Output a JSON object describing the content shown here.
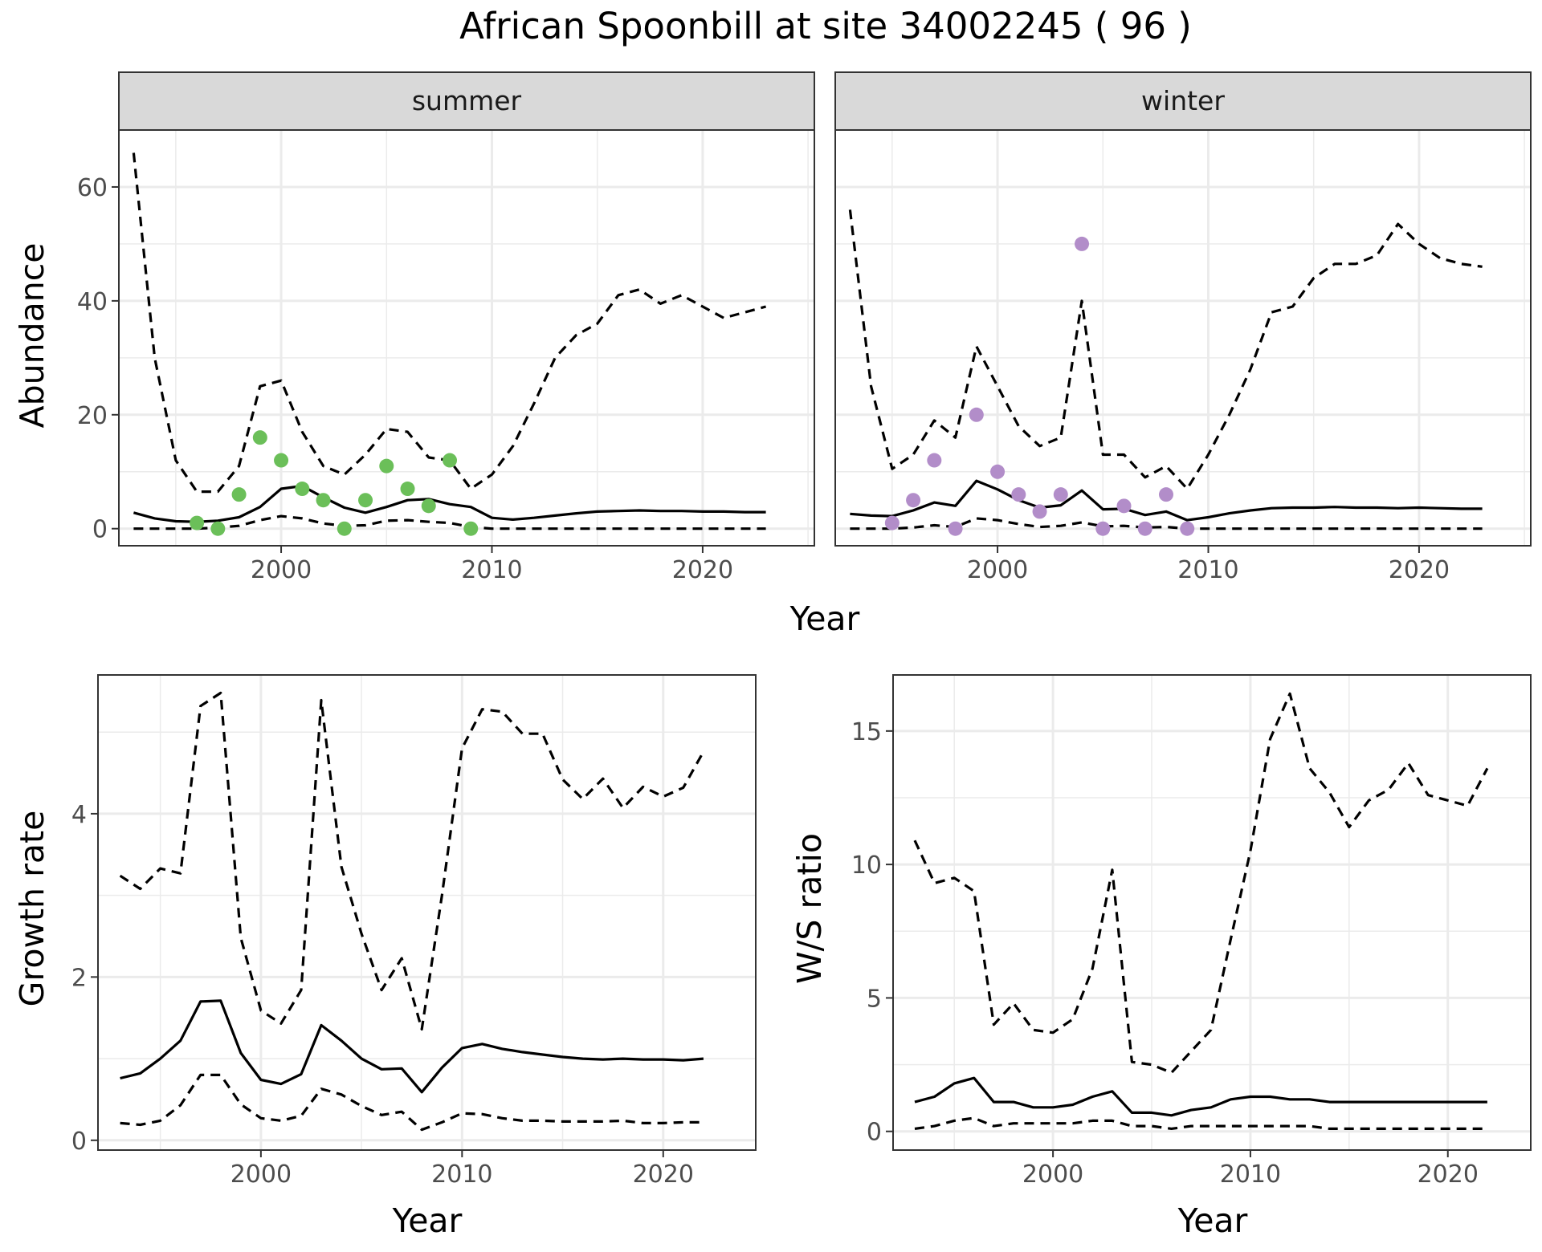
{
  "title": "African Spoonbill at site 34002245 ( 96 )",
  "colors": {
    "summer_points": "#6BBF59",
    "winter_points": "#B28DC9",
    "line": "#000000",
    "strip_bg": "#D9D9D9",
    "grid": "#EBEBEB"
  },
  "chart_data": [
    {
      "type": "line",
      "panel": "summer",
      "strip_label": "summer",
      "xlabel": "Year",
      "ylabel": "Abundance",
      "xlim": [
        1992.3,
        2025.3
      ],
      "ylim": [
        -3,
        70
      ],
      "x_ticks": [
        2000,
        2010,
        2020
      ],
      "y_ticks": [
        0,
        20,
        40,
        60
      ],
      "series": [
        {
          "style": "solid",
          "x": [
            1993,
            1994,
            1995,
            1996,
            1997,
            1998,
            1999,
            2000,
            2001,
            2002,
            2003,
            2004,
            2005,
            2006,
            2007,
            2008,
            2009,
            2010,
            2011,
            2012,
            2013,
            2014,
            2015,
            2016,
            2017,
            2018,
            2019,
            2020,
            2021,
            2022,
            2023
          ],
          "values": [
            2.8,
            1.8,
            1.3,
            1.2,
            1.4,
            2.0,
            3.8,
            7.0,
            7.5,
            5.5,
            3.7,
            2.8,
            3.8,
            5.0,
            5.2,
            4.3,
            3.8,
            1.9,
            1.6,
            1.9,
            2.3,
            2.7,
            3.0,
            3.1,
            3.2,
            3.1,
            3.1,
            3.0,
            3.0,
            2.9,
            2.9
          ]
        },
        {
          "style": "dashed",
          "x": [
            1993,
            1994,
            1995,
            1996,
            1997,
            1998,
            1999,
            2000,
            2001,
            2002,
            2003,
            2004,
            2005,
            2006,
            2007,
            2008,
            2009,
            2010,
            2011,
            2012,
            2013,
            2014,
            2015,
            2016,
            2017,
            2018,
            2019,
            2020,
            2021,
            2022,
            2023
          ],
          "values": [
            66,
            30,
            12,
            6.5,
            6.5,
            11,
            25,
            26,
            17,
            11,
            9.5,
            13,
            17.5,
            17,
            12.5,
            12,
            7,
            9.5,
            14.5,
            22,
            30,
            34,
            36,
            41,
            42,
            39.5,
            41,
            39,
            37,
            38,
            39
          ]
        },
        {
          "style": "dashed",
          "x": [
            1993,
            1994,
            1995,
            1996,
            1997,
            1998,
            1999,
            2000,
            2001,
            2002,
            2003,
            2004,
            2005,
            2006,
            2007,
            2008,
            2009,
            2010,
            2011,
            2012,
            2013,
            2014,
            2015,
            2016,
            2017,
            2018,
            2019,
            2020,
            2021,
            2022,
            2023
          ],
          "values": [
            0,
            0,
            0,
            0,
            0.2,
            0.5,
            1.5,
            2.2,
            1.8,
            0.9,
            0.5,
            0.6,
            1.4,
            1.5,
            1.2,
            1.0,
            0.3,
            0,
            0,
            0,
            0,
            0,
            0,
            0,
            0,
            0,
            0,
            0,
            0,
            0,
            0
          ]
        }
      ],
      "points": {
        "x": [
          1996,
          1997,
          1998,
          1999,
          2000,
          2001,
          2002,
          2003,
          2004,
          2005,
          2006,
          2007,
          2008,
          2009
        ],
        "values": [
          1,
          0,
          6,
          16,
          12,
          7,
          5,
          0,
          5,
          11,
          7,
          4,
          12,
          0
        ]
      }
    },
    {
      "type": "line",
      "panel": "winter",
      "strip_label": "winter",
      "xlabel": "Year",
      "ylabel": "Abundance",
      "xlim": [
        1992.3,
        2025.3
      ],
      "ylim": [
        -3,
        70
      ],
      "x_ticks": [
        2000,
        2010,
        2020
      ],
      "y_ticks": [
        0,
        20,
        40,
        60
      ],
      "series": [
        {
          "style": "solid",
          "x": [
            1993,
            1994,
            1995,
            1996,
            1997,
            1998,
            1999,
            2000,
            2001,
            2002,
            2003,
            2004,
            2005,
            2006,
            2007,
            2008,
            2009,
            2010,
            2011,
            2012,
            2013,
            2014,
            2015,
            2016,
            2017,
            2018,
            2019,
            2020,
            2021,
            2022,
            2023
          ],
          "values": [
            2.6,
            2.3,
            2.2,
            3.2,
            4.6,
            4.0,
            8.4,
            6.9,
            5.0,
            3.7,
            4.1,
            6.7,
            3.4,
            3.5,
            2.4,
            3.0,
            1.5,
            2.0,
            2.7,
            3.2,
            3.6,
            3.7,
            3.7,
            3.8,
            3.7,
            3.7,
            3.6,
            3.7,
            3.6,
            3.5,
            3.5
          ]
        },
        {
          "style": "dashed",
          "x": [
            1993,
            1994,
            1995,
            1996,
            1997,
            1998,
            1999,
            2000,
            2001,
            2002,
            2003,
            2004,
            2005,
            2006,
            2007,
            2008,
            2009,
            2010,
            2011,
            2012,
            2013,
            2014,
            2015,
            2016,
            2017,
            2018,
            2019,
            2020,
            2021,
            2022,
            2023
          ],
          "values": [
            56,
            25,
            10.5,
            13,
            19,
            16,
            32,
            25,
            18,
            14.5,
            16,
            40,
            13,
            13,
            9,
            11,
            7,
            13,
            20,
            28,
            38,
            39,
            44,
            46.5,
            46.5,
            48,
            53.5,
            50,
            47.5,
            46.5,
            46
          ]
        },
        {
          "style": "dashed",
          "x": [
            1993,
            1994,
            1995,
            1996,
            1997,
            1998,
            1999,
            2000,
            2001,
            2002,
            2003,
            2004,
            2005,
            2006,
            2007,
            2008,
            2009,
            2010,
            2011,
            2012,
            2013,
            2014,
            2015,
            2016,
            2017,
            2018,
            2019,
            2020,
            2021,
            2022,
            2023
          ],
          "values": [
            0,
            0,
            0,
            0.2,
            0.6,
            0.3,
            1.8,
            1.5,
            0.8,
            0.3,
            0.5,
            1.1,
            0.4,
            0.5,
            0.2,
            0.3,
            0,
            0,
            0,
            0,
            0,
            0,
            0,
            0,
            0,
            0,
            0,
            0,
            0,
            0,
            0
          ]
        }
      ],
      "points": {
        "x": [
          1995,
          1996,
          1997,
          1998,
          1999,
          2000,
          2001,
          2002,
          2003,
          2004,
          2005,
          2006,
          2007,
          2008,
          2009
        ],
        "values": [
          1,
          5,
          12,
          0,
          20,
          10,
          6,
          3,
          6,
          50,
          0,
          4,
          0,
          6,
          0
        ]
      }
    },
    {
      "type": "line",
      "panel": "growth",
      "xlabel": "Year",
      "ylabel": "Growth rate",
      "xlim": [
        1991.9,
        2024.6
      ],
      "ylim": [
        -0.12,
        5.7
      ],
      "x_ticks": [
        2000,
        2010,
        2020
      ],
      "y_ticks": [
        0,
        2,
        4
      ],
      "series": [
        {
          "style": "solid",
          "x": [
            1993,
            1994,
            1995,
            1996,
            1997,
            1998,
            1999,
            2000,
            2001,
            2002,
            2003,
            2004,
            2005,
            2006,
            2007,
            2008,
            2009,
            2010,
            2011,
            2012,
            2013,
            2014,
            2015,
            2016,
            2017,
            2018,
            2019,
            2020,
            2021,
            2022
          ],
          "values": [
            0.76,
            0.82,
            1.0,
            1.22,
            1.7,
            1.71,
            1.07,
            0.74,
            0.69,
            0.81,
            1.41,
            1.22,
            1.0,
            0.87,
            0.88,
            0.59,
            0.89,
            1.13,
            1.18,
            1.12,
            1.08,
            1.05,
            1.02,
            1.0,
            0.99,
            1.0,
            0.99,
            0.99,
            0.98,
            1.0
          ]
        },
        {
          "style": "dashed",
          "x": [
            1993,
            1994,
            1995,
            1996,
            1997,
            1998,
            1999,
            2000,
            2001,
            2002,
            2003,
            2004,
            2005,
            2006,
            2007,
            2008,
            2009,
            2010,
            2011,
            2012,
            2013,
            2014,
            2015,
            2016,
            2017,
            2018,
            2019,
            2020,
            2021,
            2022
          ],
          "values": [
            3.24,
            3.08,
            3.33,
            3.27,
            5.32,
            5.48,
            2.48,
            1.59,
            1.43,
            1.84,
            5.39,
            3.35,
            2.53,
            1.84,
            2.23,
            1.36,
            3.0,
            4.8,
            5.28,
            5.25,
            4.98,
            4.98,
            4.42,
            4.18,
            4.43,
            4.07,
            4.33,
            4.21,
            4.32,
            4.76
          ]
        },
        {
          "style": "dashed",
          "x": [
            1993,
            1994,
            1995,
            1996,
            1997,
            1998,
            1999,
            2000,
            2001,
            2002,
            2003,
            2004,
            2005,
            2006,
            2007,
            2008,
            2009,
            2010,
            2011,
            2012,
            2013,
            2014,
            2015,
            2016,
            2017,
            2018,
            2019,
            2020,
            2021,
            2022
          ],
          "values": [
            0.21,
            0.19,
            0.24,
            0.43,
            0.8,
            0.8,
            0.44,
            0.27,
            0.24,
            0.3,
            0.63,
            0.56,
            0.42,
            0.31,
            0.35,
            0.13,
            0.22,
            0.33,
            0.32,
            0.27,
            0.24,
            0.24,
            0.23,
            0.23,
            0.23,
            0.24,
            0.21,
            0.21,
            0.22,
            0.22
          ]
        }
      ]
    },
    {
      "type": "line",
      "panel": "ratio",
      "xlabel": "Year",
      "ylabel": "W/S ratio",
      "xlim": [
        1991.9,
        2024.2
      ],
      "ylim": [
        -0.7,
        17.1
      ],
      "x_ticks": [
        2000,
        2010,
        2020
      ],
      "y_ticks": [
        0,
        5,
        10,
        15
      ],
      "series": [
        {
          "style": "solid",
          "x": [
            1993,
            1994,
            1995,
            1996,
            1997,
            1998,
            1999,
            2000,
            2001,
            2002,
            2003,
            2004,
            2005,
            2006,
            2007,
            2008,
            2009,
            2010,
            2011,
            2012,
            2013,
            2014,
            2015,
            2016,
            2017,
            2018,
            2019,
            2020,
            2021,
            2022
          ],
          "values": [
            1.1,
            1.3,
            1.8,
            2.0,
            1.1,
            1.1,
            0.9,
            0.9,
            1.0,
            1.3,
            1.5,
            0.7,
            0.7,
            0.6,
            0.8,
            0.9,
            1.2,
            1.3,
            1.3,
            1.2,
            1.2,
            1.1,
            1.1,
            1.1,
            1.1,
            1.1,
            1.1,
            1.1,
            1.1,
            1.1
          ]
        },
        {
          "style": "dashed",
          "x": [
            1993,
            1994,
            1995,
            1996,
            1997,
            1998,
            1999,
            2000,
            2001,
            2002,
            2003,
            2004,
            2005,
            2006,
            2007,
            2008,
            2009,
            2010,
            2011,
            2012,
            2013,
            2014,
            2015,
            2016,
            2017,
            2018,
            2019,
            2020,
            2021,
            2022
          ],
          "values": [
            10.9,
            9.3,
            9.5,
            9.0,
            4.0,
            4.8,
            3.8,
            3.7,
            4.2,
            6.1,
            9.8,
            2.6,
            2.5,
            2.2,
            3.0,
            3.8,
            7.2,
            10.5,
            14.7,
            16.4,
            13.6,
            12.7,
            11.4,
            12.4,
            12.8,
            13.8,
            12.6,
            12.4,
            12.2,
            13.6
          ]
        },
        {
          "style": "dashed",
          "x": [
            1993,
            1994,
            1995,
            1996,
            1997,
            1998,
            1999,
            2000,
            2001,
            2002,
            2003,
            2004,
            2005,
            2006,
            2007,
            2008,
            2009,
            2010,
            2011,
            2012,
            2013,
            2014,
            2015,
            2016,
            2017,
            2018,
            2019,
            2020,
            2021,
            2022
          ],
          "values": [
            0.1,
            0.2,
            0.4,
            0.5,
            0.2,
            0.3,
            0.3,
            0.3,
            0.3,
            0.4,
            0.4,
            0.2,
            0.2,
            0.1,
            0.2,
            0.2,
            0.2,
            0.2,
            0.2,
            0.2,
            0.2,
            0.1,
            0.1,
            0.1,
            0.1,
            0.1,
            0.1,
            0.1,
            0.1,
            0.1
          ]
        }
      ]
    }
  ]
}
